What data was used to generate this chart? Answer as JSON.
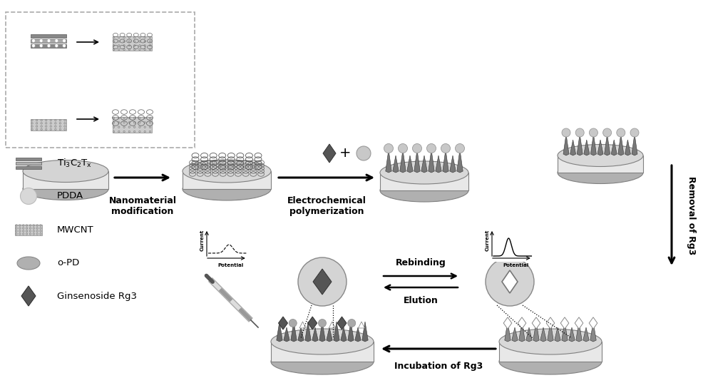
{
  "bg_color": "#ffffff",
  "fig_width": 10.0,
  "fig_height": 5.37,
  "dpi": 100,
  "legend_labels": [
    "Ti₃C₂Tₓ",
    "PDDA",
    "MWCNT",
    "o-PD",
    "Ginsenoside Rg3"
  ],
  "step_labels": {
    "nano_mod": "Nanomaterial\nmodification",
    "electro_poly": "Electrochemical\npolymerization",
    "removal": "Removal of Rg3",
    "incubation": "Incubation of Rg3",
    "rebinding": "Rebinding",
    "elution": "Elution",
    "potential": "Potential",
    "current": "Current"
  }
}
